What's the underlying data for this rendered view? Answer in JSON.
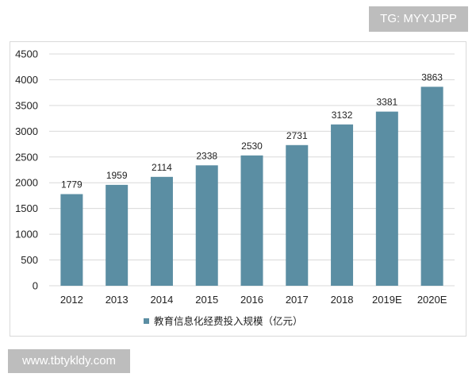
{
  "watermarks": {
    "top": "TG: MYYJJPP",
    "bottom": "www.tbtykldy.com"
  },
  "colors": {
    "bar": "#5b8ea3",
    "grid": "#d9d9d9"
  },
  "chart_data": {
    "type": "bar",
    "categories": [
      "2012",
      "2013",
      "2014",
      "2015",
      "2016",
      "2017",
      "2018",
      "2019E",
      "2020E"
    ],
    "series": [
      {
        "name": "教育信息化经费投入规模（亿元）",
        "values": [
          1779,
          1959,
          2114,
          2338,
          2530,
          2731,
          3132,
          3381,
          3863
        ]
      }
    ],
    "ylim": [
      0,
      4500
    ],
    "yticks": [
      0,
      500,
      1000,
      1500,
      2000,
      2500,
      3000,
      3500,
      4000,
      4500
    ],
    "grid": true,
    "legend_position": "bottom-center",
    "data_labels": true
  }
}
